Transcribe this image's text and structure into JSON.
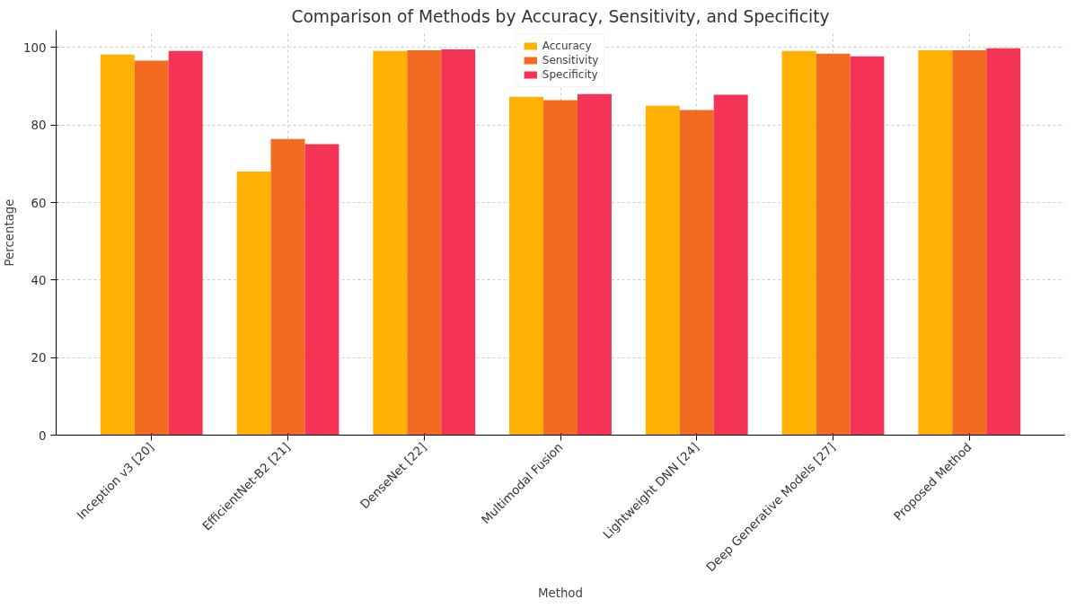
{
  "chart_data": {
    "type": "bar",
    "title": "Comparison of Methods by Accuracy, Sensitivity, and Specificity",
    "xlabel": "Method",
    "ylabel": "Percentage",
    "categories": [
      "Inception v3 [20]",
      "EfficientNet-B2 [21]",
      "DenseNet [22]",
      "Multimodal Fusion",
      "Lightweight DNN [24]",
      "Deep Generative Models [27]",
      "Proposed Method"
    ],
    "series": [
      {
        "name": "Accuracy",
        "color": "#ffb000",
        "values": [
          98.2,
          68.0,
          99.1,
          87.3,
          85.0,
          99.1,
          99.3
        ]
      },
      {
        "name": "Sensitivity",
        "color": "#f26b21",
        "values": [
          96.6,
          76.4,
          99.3,
          86.4,
          83.9,
          98.4,
          99.3
        ]
      },
      {
        "name": "Specificity",
        "color": "#f53355",
        "values": [
          99.1,
          75.1,
          99.5,
          88.0,
          87.8,
          97.7,
          99.8
        ]
      }
    ],
    "ylim": [
      0,
      104.5
    ],
    "yticks": [
      0,
      20,
      40,
      60,
      80,
      100
    ],
    "grid": true,
    "legend": "top"
  }
}
